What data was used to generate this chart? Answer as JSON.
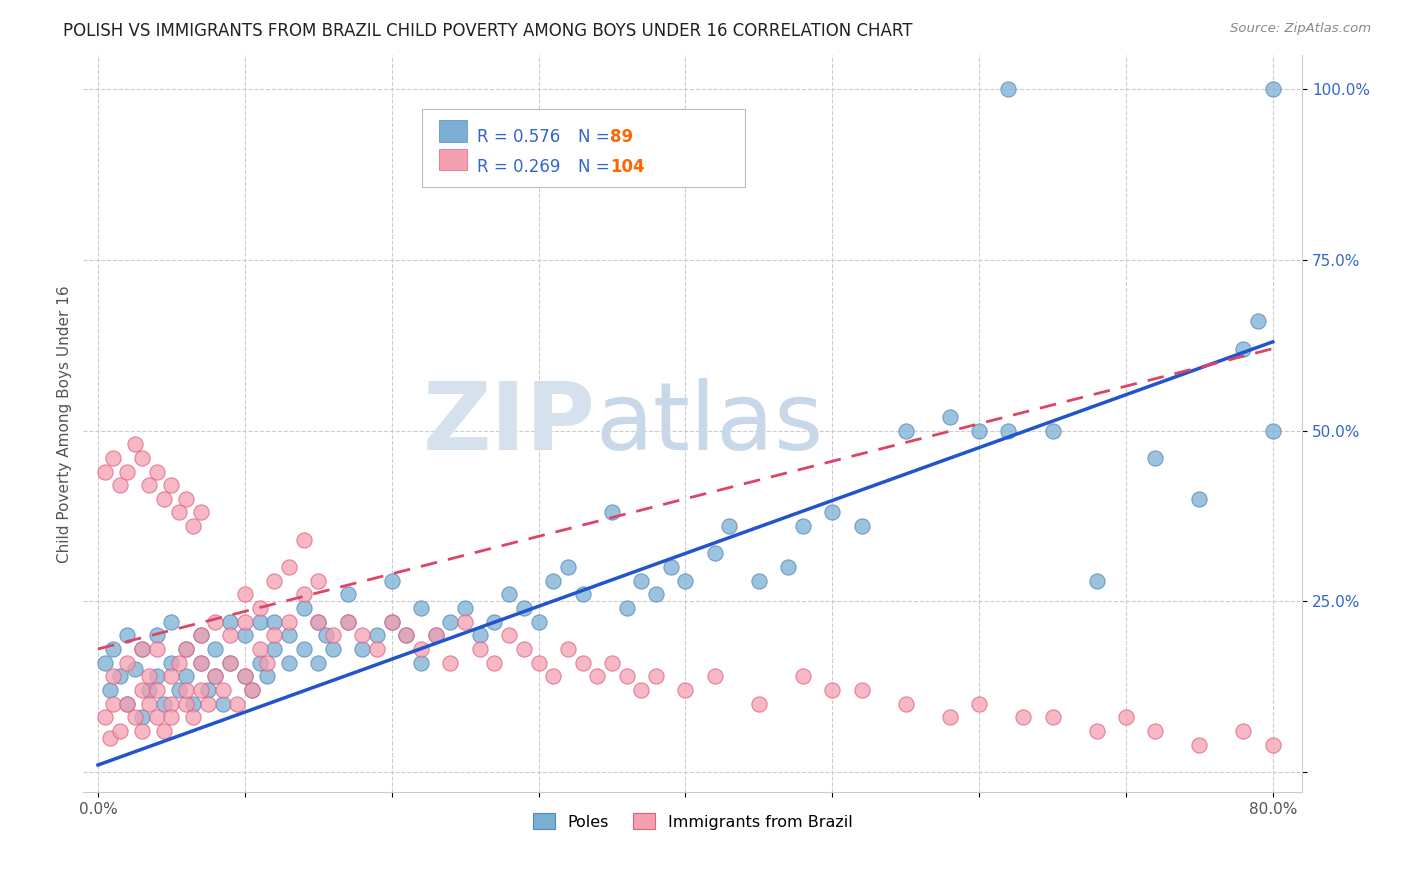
{
  "title": "POLISH VS IMMIGRANTS FROM BRAZIL CHILD POVERTY AMONG BOYS UNDER 16 CORRELATION CHART",
  "source": "Source: ZipAtlas.com",
  "ylabel": "Child Poverty Among Boys Under 16",
  "xlim": [
    -0.01,
    0.82
  ],
  "ylim": [
    -0.03,
    1.05
  ],
  "xticks": [
    0.0,
    0.1,
    0.2,
    0.3,
    0.4,
    0.5,
    0.6,
    0.7,
    0.8
  ],
  "xticklabels": [
    "0.0%",
    "",
    "",
    "",
    "",
    "",
    "",
    "",
    "80.0%"
  ],
  "ytick_positions": [
    0.0,
    0.25,
    0.5,
    0.75,
    1.0
  ],
  "ytick_labels": [
    "",
    "25.0%",
    "50.0%",
    "75.0%",
    "100.0%"
  ],
  "poles_R": 0.576,
  "poles_N": 89,
  "brazil_R": 0.269,
  "brazil_N": 104,
  "poles_color": "#7BAFD4",
  "brazil_color": "#F4A0B0",
  "poles_edge_color": "#5588BB",
  "brazil_edge_color": "#E06080",
  "trend_poles_color": "#2255CC",
  "trend_brazil_color": "#DD4466",
  "watermark_zip": "ZIP",
  "watermark_atlas": "atlas",
  "watermark_color": "#D0DCE8",
  "legend_R_color": "#3366CC",
  "legend_N_color": "#FF6600",
  "poles_x": [
    0.005,
    0.008,
    0.01,
    0.015,
    0.02,
    0.02,
    0.025,
    0.03,
    0.03,
    0.035,
    0.04,
    0.04,
    0.045,
    0.05,
    0.05,
    0.055,
    0.06,
    0.06,
    0.065,
    0.07,
    0.07,
    0.075,
    0.08,
    0.08,
    0.085,
    0.09,
    0.09,
    0.1,
    0.1,
    0.105,
    0.11,
    0.11,
    0.115,
    0.12,
    0.12,
    0.13,
    0.13,
    0.14,
    0.14,
    0.15,
    0.15,
    0.155,
    0.16,
    0.17,
    0.17,
    0.18,
    0.19,
    0.2,
    0.2,
    0.21,
    0.22,
    0.22,
    0.23,
    0.24,
    0.25,
    0.26,
    0.27,
    0.28,
    0.29,
    0.3,
    0.31,
    0.32,
    0.33,
    0.35,
    0.36,
    0.37,
    0.38,
    0.39,
    0.4,
    0.42,
    0.43,
    0.45,
    0.47,
    0.48,
    0.5,
    0.52,
    0.55,
    0.58,
    0.6,
    0.62,
    0.62,
    0.65,
    0.68,
    0.72,
    0.75,
    0.78,
    0.79,
    0.8,
    0.8
  ],
  "poles_y": [
    0.16,
    0.12,
    0.18,
    0.14,
    0.1,
    0.2,
    0.15,
    0.08,
    0.18,
    0.12,
    0.14,
    0.2,
    0.1,
    0.16,
    0.22,
    0.12,
    0.14,
    0.18,
    0.1,
    0.16,
    0.2,
    0.12,
    0.14,
    0.18,
    0.1,
    0.16,
    0.22,
    0.14,
    0.2,
    0.12,
    0.16,
    0.22,
    0.14,
    0.18,
    0.22,
    0.16,
    0.2,
    0.18,
    0.24,
    0.16,
    0.22,
    0.2,
    0.18,
    0.22,
    0.26,
    0.18,
    0.2,
    0.22,
    0.28,
    0.2,
    0.16,
    0.24,
    0.2,
    0.22,
    0.24,
    0.2,
    0.22,
    0.26,
    0.24,
    0.22,
    0.28,
    0.3,
    0.26,
    0.38,
    0.24,
    0.28,
    0.26,
    0.3,
    0.28,
    0.32,
    0.36,
    0.28,
    0.3,
    0.36,
    0.38,
    0.36,
    0.5,
    0.52,
    0.5,
    0.5,
    1.0,
    0.5,
    0.28,
    0.46,
    0.4,
    0.62,
    0.66,
    1.0,
    0.5
  ],
  "brazil_x": [
    0.005,
    0.008,
    0.01,
    0.01,
    0.015,
    0.02,
    0.02,
    0.025,
    0.03,
    0.03,
    0.03,
    0.035,
    0.035,
    0.04,
    0.04,
    0.04,
    0.045,
    0.05,
    0.05,
    0.05,
    0.055,
    0.06,
    0.06,
    0.06,
    0.065,
    0.07,
    0.07,
    0.07,
    0.075,
    0.08,
    0.08,
    0.085,
    0.09,
    0.09,
    0.095,
    0.1,
    0.1,
    0.1,
    0.105,
    0.11,
    0.11,
    0.115,
    0.12,
    0.12,
    0.13,
    0.13,
    0.14,
    0.14,
    0.15,
    0.15,
    0.16,
    0.17,
    0.18,
    0.19,
    0.2,
    0.21,
    0.22,
    0.23,
    0.24,
    0.25,
    0.26,
    0.27,
    0.28,
    0.29,
    0.3,
    0.31,
    0.32,
    0.33,
    0.34,
    0.35,
    0.36,
    0.37,
    0.38,
    0.4,
    0.42,
    0.45,
    0.48,
    0.5,
    0.52,
    0.55,
    0.58,
    0.6,
    0.63,
    0.65,
    0.68,
    0.7,
    0.72,
    0.75,
    0.78,
    0.8,
    0.005,
    0.01,
    0.015,
    0.02,
    0.025,
    0.03,
    0.035,
    0.04,
    0.045,
    0.05,
    0.055,
    0.06,
    0.065,
    0.07
  ],
  "brazil_y": [
    0.08,
    0.05,
    0.1,
    0.14,
    0.06,
    0.1,
    0.16,
    0.08,
    0.12,
    0.06,
    0.18,
    0.1,
    0.14,
    0.08,
    0.12,
    0.18,
    0.06,
    0.1,
    0.14,
    0.08,
    0.16,
    0.1,
    0.12,
    0.18,
    0.08,
    0.12,
    0.16,
    0.2,
    0.1,
    0.14,
    0.22,
    0.12,
    0.16,
    0.2,
    0.1,
    0.14,
    0.22,
    0.26,
    0.12,
    0.18,
    0.24,
    0.16,
    0.2,
    0.28,
    0.22,
    0.3,
    0.26,
    0.34,
    0.22,
    0.28,
    0.2,
    0.22,
    0.2,
    0.18,
    0.22,
    0.2,
    0.18,
    0.2,
    0.16,
    0.22,
    0.18,
    0.16,
    0.2,
    0.18,
    0.16,
    0.14,
    0.18,
    0.16,
    0.14,
    0.16,
    0.14,
    0.12,
    0.14,
    0.12,
    0.14,
    0.1,
    0.14,
    0.12,
    0.12,
    0.1,
    0.08,
    0.1,
    0.08,
    0.08,
    0.06,
    0.08,
    0.06,
    0.04,
    0.06,
    0.04,
    0.44,
    0.46,
    0.42,
    0.44,
    0.48,
    0.46,
    0.42,
    0.44,
    0.4,
    0.42,
    0.38,
    0.4,
    0.36,
    0.38
  ],
  "trend_poles_x0": 0.0,
  "trend_poles_y0": 0.01,
  "trend_poles_x1": 0.8,
  "trend_poles_y1": 0.63,
  "trend_brazil_x0": 0.0,
  "trend_brazil_y0": 0.18,
  "trend_brazil_x1": 0.8,
  "trend_brazil_y1": 0.62
}
